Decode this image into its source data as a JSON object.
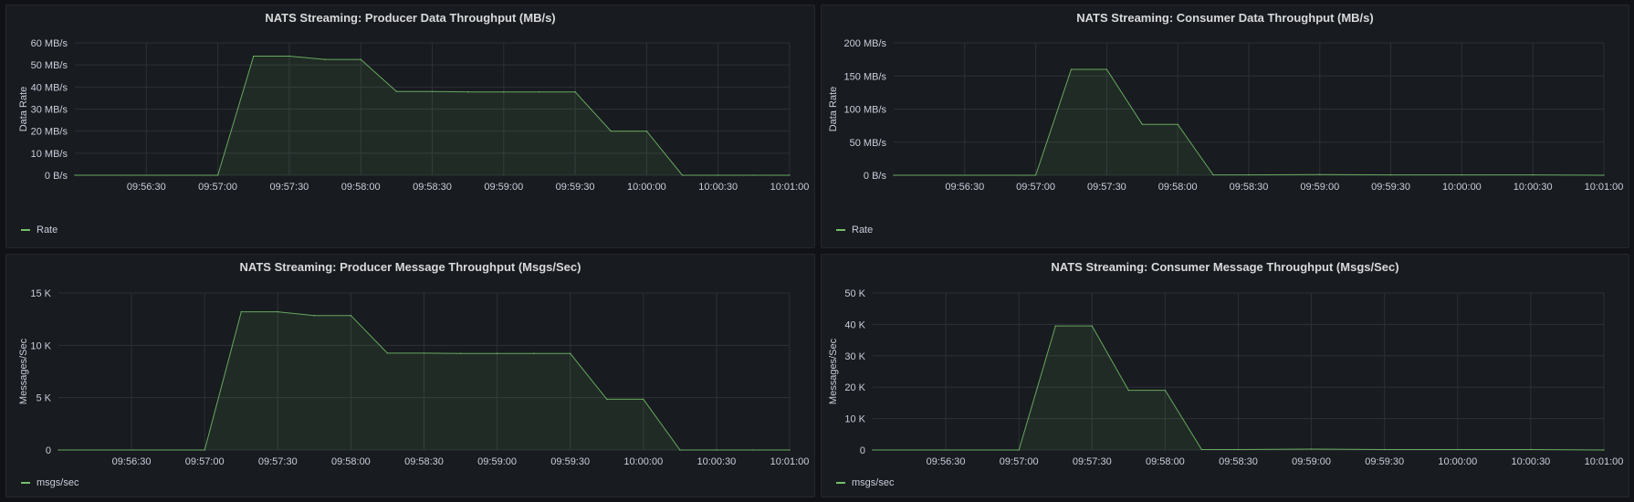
{
  "colors": {
    "series": "#73bf69",
    "grid": "#2c3036",
    "text": "#ccccdc"
  },
  "chart_data": [
    {
      "type": "area",
      "title": "NATS Streaming: Producer Data Throughput (MB/s)",
      "ylabel": "Data Rate",
      "legend": "Rate",
      "legend_placement": "bottom-left",
      "grid": true,
      "y_ticks": [
        "0 B/s",
        "10 MB/s",
        "20 MB/s",
        "30 MB/s",
        "40 MB/s",
        "50 MB/s",
        "60 MB/s"
      ],
      "ylim": [
        0,
        60
      ],
      "x_ticks": [
        "09:56:30",
        "09:57:00",
        "09:57:30",
        "09:58:00",
        "09:58:30",
        "09:59:00",
        "09:59:30",
        "10:00:00",
        "10:00:30",
        "10:01:00"
      ],
      "xlim": [
        "09:56:00",
        "10:01:00"
      ],
      "series": [
        {
          "name": "Rate",
          "x": [
            "09:56:00",
            "09:57:00",
            "09:57:15",
            "09:57:30",
            "09:57:45",
            "09:58:00",
            "09:58:15",
            "09:58:30",
            "09:58:45",
            "09:59:00",
            "09:59:15",
            "09:59:30",
            "09:59:45",
            "10:00:00",
            "10:00:15",
            "10:00:30",
            "10:00:45",
            "10:01:00"
          ],
          "y": [
            0,
            0,
            54,
            54,
            52.5,
            52.5,
            38,
            38,
            37.8,
            37.8,
            37.8,
            37.8,
            20,
            20,
            0,
            0,
            0,
            0
          ]
        }
      ]
    },
    {
      "type": "area",
      "title": "NATS Streaming: Consumer Data Throughput (MB/s)",
      "ylabel": "Data Rate",
      "legend": "Rate",
      "legend_placement": "bottom-left",
      "grid": true,
      "y_ticks": [
        "0 B/s",
        "50 MB/s",
        "100 MB/s",
        "150 MB/s",
        "200 MB/s"
      ],
      "ylim": [
        0,
        200
      ],
      "x_ticks": [
        "09:56:30",
        "09:57:00",
        "09:57:30",
        "09:58:00",
        "09:58:30",
        "09:59:00",
        "09:59:30",
        "10:00:00",
        "10:00:30",
        "10:01:00"
      ],
      "xlim": [
        "09:56:00",
        "10:01:00"
      ],
      "series": [
        {
          "name": "Rate",
          "x": [
            "09:56:00",
            "09:57:00",
            "09:57:15",
            "09:57:30",
            "09:57:45",
            "09:58:00",
            "09:58:15",
            "09:58:30",
            "09:59:00",
            "09:59:30",
            "10:00:00",
            "10:00:30",
            "10:01:00"
          ],
          "y": [
            0,
            0,
            160,
            160,
            77,
            77,
            0.5,
            0.5,
            1,
            0.5,
            0.5,
            0.5,
            0
          ]
        }
      ]
    },
    {
      "type": "area",
      "title": "NATS Streaming: Producer Message Throughput (Msgs/Sec)",
      "ylabel": "Messages/Sec",
      "legend": "msgs/sec",
      "legend_placement": "bottom-left",
      "grid": true,
      "y_ticks": [
        "0",
        "5 K",
        "10 K",
        "15 K"
      ],
      "ylim": [
        0,
        15000
      ],
      "x_ticks": [
        "09:56:30",
        "09:57:00",
        "09:57:30",
        "09:58:00",
        "09:58:30",
        "09:59:00",
        "09:59:30",
        "10:00:00",
        "10:00:30",
        "10:01:00"
      ],
      "xlim": [
        "09:56:00",
        "10:01:00"
      ],
      "series": [
        {
          "name": "msgs/sec",
          "x": [
            "09:56:00",
            "09:57:00",
            "09:57:15",
            "09:57:30",
            "09:57:45",
            "09:58:00",
            "09:58:15",
            "09:58:30",
            "09:58:45",
            "09:59:00",
            "09:59:15",
            "09:59:30",
            "09:59:45",
            "10:00:00",
            "10:00:15",
            "10:00:30",
            "10:00:45",
            "10:01:00"
          ],
          "y": [
            0,
            0,
            13200,
            13200,
            12850,
            12850,
            9250,
            9250,
            9220,
            9220,
            9220,
            9220,
            4850,
            4850,
            0,
            0,
            0,
            0
          ]
        }
      ]
    },
    {
      "type": "area",
      "title": "NATS Streaming: Consumer Message Throughput (Msgs/Sec)",
      "ylabel": "Messages/Sec",
      "legend": "msgs/sec",
      "legend_placement": "bottom-left",
      "grid": true,
      "y_ticks": [
        "0",
        "10 K",
        "20 K",
        "30 K",
        "40 K",
        "50 K"
      ],
      "ylim": [
        0,
        50000
      ],
      "x_ticks": [
        "09:56:30",
        "09:57:00",
        "09:57:30",
        "09:58:00",
        "09:58:30",
        "09:59:00",
        "09:59:30",
        "10:00:00",
        "10:00:30",
        "10:01:00"
      ],
      "xlim": [
        "09:56:00",
        "10:01:00"
      ],
      "series": [
        {
          "name": "msgs/sec",
          "x": [
            "09:56:00",
            "09:57:00",
            "09:57:15",
            "09:57:30",
            "09:57:45",
            "09:58:00",
            "09:58:15",
            "09:58:30",
            "09:59:00",
            "09:59:30",
            "10:00:00",
            "10:00:30",
            "10:01:00"
          ],
          "y": [
            0,
            0,
            39500,
            39500,
            19000,
            19000,
            150,
            150,
            300,
            150,
            150,
            150,
            0
          ]
        }
      ]
    }
  ]
}
